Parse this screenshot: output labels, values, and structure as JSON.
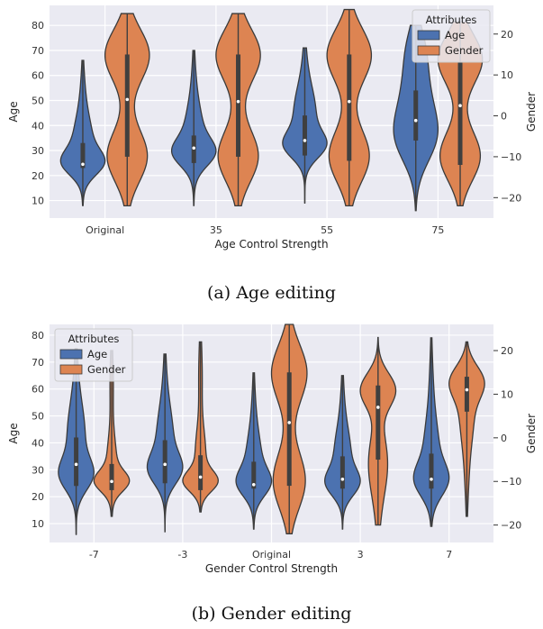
{
  "colors": {
    "age": "#4c72b0",
    "gender": "#dd8452",
    "plot_bg": "#eaeaf2",
    "grid": "#ffffff",
    "outline": "#3a3a3a"
  },
  "captions": {
    "a": "(a) Age editing",
    "b": "(b) Gender editing"
  },
  "chart_data": [
    {
      "type": "violin",
      "xlabel": "Age Control Strength",
      "ylabel": "Age",
      "ylabel_right": "Gender",
      "ylim": [
        3,
        88
      ],
      "ylim_right": [
        -25,
        27
      ],
      "yticks": [
        10,
        20,
        30,
        40,
        50,
        60,
        70,
        80
      ],
      "yticks_right": [
        -20,
        -10,
        0,
        10,
        20
      ],
      "categories": [
        "Original",
        "35",
        "55",
        "75"
      ],
      "legend": {
        "title": "Attributes",
        "entries": [
          "Age",
          "Gender"
        ],
        "position": "top-right"
      },
      "grid": true,
      "series": [
        {
          "name": "Age",
          "axis": "left",
          "values": [
            {
              "min": 8,
              "q1": 23,
              "median": 24.5,
              "q3": 33,
              "max": 66,
              "peak": 25,
              "shape": "right-skewed"
            },
            {
              "min": 8,
              "q1": 25,
              "median": 31,
              "q3": 36,
              "max": 70,
              "peak": 29,
              "shape": "right-skewed"
            },
            {
              "min": 9,
              "q1": 28,
              "median": 34,
              "q3": 44,
              "max": 71,
              "peak": 32,
              "shape": "right-skewed"
            },
            {
              "min": 6,
              "q1": 34,
              "median": 42,
              "q3": 54,
              "max": 80,
              "peak": 35,
              "shape": "wide"
            }
          ]
        },
        {
          "name": "Gender",
          "axis": "right",
          "values": [
            {
              "min": -22,
              "q1": -10,
              "median": 4,
              "q3": 15,
              "max": 25,
              "modes": [
                -10,
                15
              ],
              "shape": "bimodal"
            },
            {
              "min": -22,
              "q1": -10,
              "median": 3.5,
              "q3": 15,
              "max": 25,
              "modes": [
                -10,
                15
              ],
              "shape": "bimodal"
            },
            {
              "min": -22,
              "q1": -11,
              "median": 3.5,
              "q3": 15,
              "max": 26,
              "modes": [
                -10,
                15
              ],
              "shape": "bimodal"
            },
            {
              "min": -22,
              "q1": -12,
              "median": 2.5,
              "q3": 13,
              "max": 23,
              "modes": [
                -10,
                14
              ],
              "shape": "bimodal"
            }
          ]
        }
      ]
    },
    {
      "type": "violin",
      "xlabel": "Gender Control Strength",
      "ylabel": "Age",
      "ylabel_right": "Gender",
      "ylim": [
        3,
        84
      ],
      "ylim_right": [
        -24,
        26
      ],
      "yticks": [
        10,
        20,
        30,
        40,
        50,
        60,
        70,
        80
      ],
      "yticks_right": [
        -20,
        -10,
        0,
        10,
        20
      ],
      "categories": [
        "-7",
        "-3",
        "Original",
        "3",
        "7"
      ],
      "legend": {
        "title": "Attributes",
        "entries": [
          "Age",
          "Gender"
        ],
        "position": "top-left"
      },
      "grid": true,
      "series": [
        {
          "name": "Age",
          "axis": "left",
          "values": [
            {
              "min": 6,
              "q1": 24,
              "median": 32,
              "q3": 42,
              "max": 75,
              "peak": 28,
              "shape": "right-skewed"
            },
            {
              "min": 7,
              "q1": 25,
              "median": 32,
              "q3": 41,
              "max": 73,
              "peak": 30,
              "shape": "right-skewed"
            },
            {
              "min": 8,
              "q1": 23,
              "median": 24.5,
              "q3": 33,
              "max": 66,
              "peak": 25,
              "shape": "right-skewed"
            },
            {
              "min": 8,
              "q1": 23,
              "median": 26.5,
              "q3": 35,
              "max": 65,
              "peak": 25,
              "shape": "right-skewed"
            },
            {
              "min": 9,
              "q1": 23,
              "median": 26.5,
              "q3": 36,
              "max": 79,
              "peak": 26,
              "shape": "right-skewed"
            }
          ]
        },
        {
          "name": "Gender",
          "axis": "right",
          "values": [
            {
              "min": -18,
              "q1": -12,
              "median": -10,
              "q3": -6,
              "max": 20,
              "peak": -10,
              "shape": "peaked"
            },
            {
              "min": -17,
              "q1": -12,
              "median": -9,
              "q3": -4,
              "max": 22,
              "peak": -10,
              "shape": "peaked"
            },
            {
              "min": -22,
              "q1": -11,
              "median": 3.5,
              "q3": 15,
              "max": 26,
              "modes": [
                -10,
                15
              ],
              "shape": "bimodal"
            },
            {
              "min": -20,
              "q1": -5,
              "median": 7,
              "q3": 12,
              "max": 23,
              "peak": 11,
              "shape": "left-skewed"
            },
            {
              "min": -18,
              "q1": 6,
              "median": 11,
              "q3": 14,
              "max": 22,
              "peak": 13,
              "shape": "left-skewed"
            }
          ]
        }
      ]
    }
  ]
}
